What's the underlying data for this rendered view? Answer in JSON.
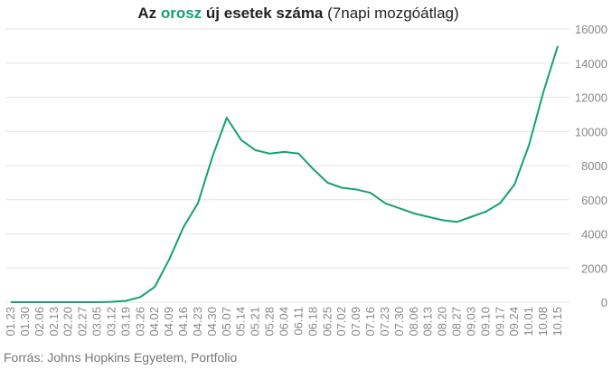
{
  "chart_data": {
    "type": "line",
    "title_parts": [
      "Az",
      "orosz",
      "új esetek száma",
      "(7napi mozgóátlag)"
    ],
    "source": "Forrás: Johns Hopkins Egyetem, Portfolio",
    "categories": [
      "01.23",
      "01.30",
      "02.06",
      "02.13",
      "02.20",
      "02.27",
      "03.05",
      "03.12",
      "03.19",
      "03.26",
      "04.02",
      "04.09",
      "04.16",
      "04.23",
      "04.30",
      "05.07",
      "05.14",
      "05.21",
      "05.28",
      "06.04",
      "06.11",
      "06.18",
      "06.25",
      "07.02",
      "07.09",
      "07.16",
      "07.23",
      "07.30",
      "08.06",
      "08.13",
      "08.20",
      "08.27",
      "09.03",
      "09.10",
      "09.17",
      "09.24",
      "10.01",
      "10.08",
      "10.15"
    ],
    "series": [
      {
        "color": "#16a075",
        "values": [
          0,
          0,
          0,
          0,
          0,
          0,
          0,
          20,
          80,
          300,
          900,
          2500,
          4400,
          5800,
          8500,
          10800,
          9500,
          8900,
          8700,
          8800,
          8700,
          7800,
          7000,
          6700,
          6600,
          6400,
          5800,
          5500,
          5200,
          5000,
          4800,
          4700,
          5000,
          5300,
          5800,
          6900,
          9200,
          12300,
          15000
        ]
      }
    ],
    "ylim": [
      0,
      16000
    ],
    "yticks": [
      0,
      2000,
      4000,
      6000,
      8000,
      10000,
      12000,
      14000,
      16000
    ],
    "grid": true
  }
}
